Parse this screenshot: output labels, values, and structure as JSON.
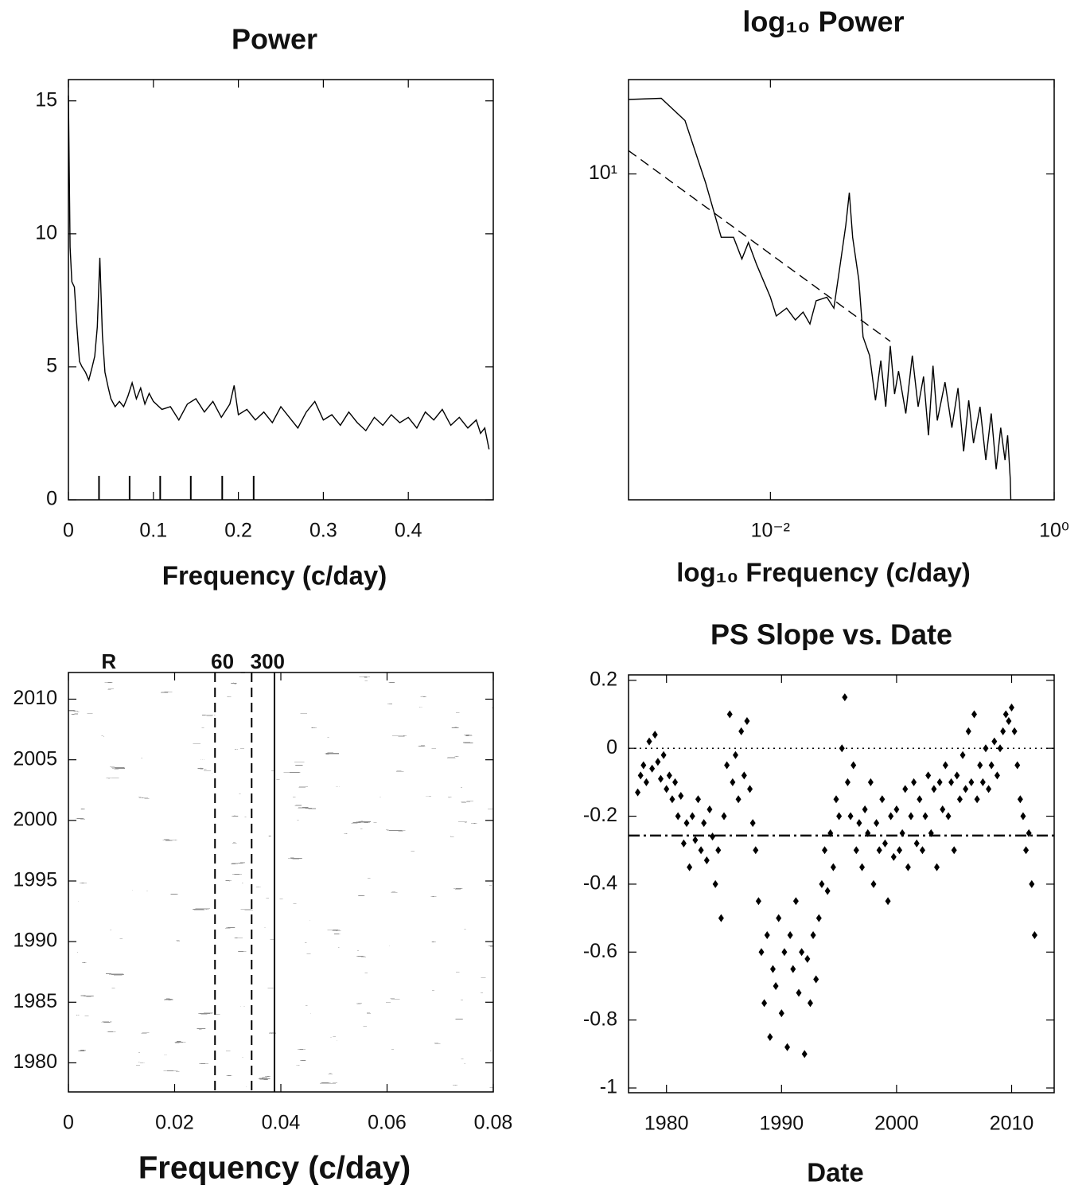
{
  "chart_data": [
    {
      "type": "line",
      "title": "Power",
      "xlabel": "Frequency (c/day)",
      "xlim": [
        0,
        0.5
      ],
      "xticks": [
        0,
        0.1,
        0.2,
        0.3,
        0.4
      ],
      "ylim": [
        0,
        15.8
      ],
      "yticks": [
        0,
        5,
        10,
        15
      ],
      "series": [
        {
          "color": "#000000",
          "style": "solid",
          "x": [
            0,
            0.002,
            0.004,
            0.007,
            0.01,
            0.013,
            0.016,
            0.02,
            0.024,
            0.028,
            0.031,
            0.034,
            0.037,
            0.04,
            0.043,
            0.047,
            0.05,
            0.055,
            0.06,
            0.065,
            0.07,
            0.075,
            0.08,
            0.085,
            0.09,
            0.095,
            0.1,
            0.11,
            0.12,
            0.13,
            0.14,
            0.15,
            0.16,
            0.17,
            0.18,
            0.19,
            0.195,
            0.2,
            0.21,
            0.22,
            0.23,
            0.24,
            0.25,
            0.26,
            0.27,
            0.28,
            0.29,
            0.3,
            0.31,
            0.32,
            0.33,
            0.34,
            0.35,
            0.36,
            0.37,
            0.38,
            0.39,
            0.4,
            0.41,
            0.42,
            0.43,
            0.44,
            0.45,
            0.46,
            0.47,
            0.48,
            0.485,
            0.49,
            0.495
          ],
          "values": [
            15.2,
            9.5,
            8.2,
            8.0,
            6.5,
            5.2,
            5.0,
            4.8,
            4.5,
            5.0,
            5.4,
            6.5,
            9.1,
            6.2,
            4.8,
            4.2,
            3.8,
            3.5,
            3.7,
            3.5,
            3.9,
            4.4,
            3.8,
            4.2,
            3.6,
            4.0,
            3.7,
            3.4,
            3.5,
            3.0,
            3.6,
            3.8,
            3.3,
            3.7,
            3.1,
            3.6,
            4.3,
            3.2,
            3.4,
            3.0,
            3.3,
            2.9,
            3.5,
            3.1,
            2.7,
            3.3,
            3.7,
            3.0,
            3.2,
            2.8,
            3.3,
            2.9,
            2.6,
            3.1,
            2.8,
            3.2,
            2.9,
            3.1,
            2.7,
            3.3,
            3.0,
            3.4,
            2.8,
            3.1,
            2.7,
            3.0,
            2.5,
            2.7,
            1.9
          ]
        }
      ],
      "markers": [
        0.036,
        0.072,
        0.108,
        0.144,
        0.181,
        0.218
      ],
      "marker_top": 0.9
    },
    {
      "type": "line",
      "title": "log₁₀ Power",
      "xlabel": "log₁₀ Frequency (c/day)",
      "log_x": true,
      "log_y": true,
      "xlim": [
        0.001,
        1
      ],
      "xticks": [
        {
          "value": 0.01,
          "label": "10⁻²"
        },
        {
          "value": 1,
          "label": "10⁰"
        }
      ],
      "ylim": [
        1.6,
        17
      ],
      "yticks": [
        {
          "value": 10,
          "label": "10¹"
        }
      ],
      "series": [
        {
          "color": "#000000",
          "style": "solid",
          "x": [
            0.001,
            0.0017,
            0.0025,
            0.0035,
            0.0045,
            0.0055,
            0.0063,
            0.007,
            0.008,
            0.01,
            0.011,
            0.013,
            0.015,
            0.017,
            0.019,
            0.021,
            0.025,
            0.028,
            0.031,
            0.034,
            0.036,
            0.038,
            0.042,
            0.045,
            0.05,
            0.055,
            0.06,
            0.065,
            0.07,
            0.075,
            0.08,
            0.09,
            0.1,
            0.11,
            0.12,
            0.13,
            0.14,
            0.15,
            0.17,
            0.19,
            0.21,
            0.23,
            0.25,
            0.27,
            0.3,
            0.33,
            0.36,
            0.39,
            0.42,
            0.45,
            0.47,
            0.49,
            0.495
          ],
          "values": [
            15.2,
            15.3,
            13.5,
            9.5,
            7.0,
            7.0,
            6.2,
            6.8,
            6.0,
            5.0,
            4.5,
            4.7,
            4.4,
            4.6,
            4.3,
            4.9,
            5.0,
            4.7,
            6.0,
            7.5,
            9.0,
            7.0,
            5.5,
            4.0,
            3.6,
            2.8,
            3.5,
            2.7,
            3.8,
            2.9,
            3.3,
            2.6,
            3.6,
            2.7,
            3.2,
            2.3,
            3.4,
            2.5,
            3.1,
            2.4,
            3.0,
            2.1,
            2.8,
            2.2,
            2.7,
            2.0,
            2.6,
            1.9,
            2.4,
            2.0,
            2.3,
            1.8,
            1.6
          ]
        },
        {
          "color": "#000000",
          "style": "dashed",
          "x": [
            0.001,
            0.07
          ],
          "values": [
            11.4,
            3.9
          ]
        }
      ]
    },
    {
      "type": "heatmap",
      "xlabel": "Frequency (c/day)",
      "xlim": [
        0,
        0.08
      ],
      "xticks": [
        0,
        0.02,
        0.04,
        0.06,
        0.08
      ],
      "ylim": [
        1977.6,
        2012.2
      ],
      "yticks": [
        1980,
        1985,
        1990,
        1995,
        2000,
        2005,
        2010
      ],
      "lines": [
        {
          "x": 0.0276,
          "style": "dashed"
        },
        {
          "x": 0.0345,
          "style": "dashed"
        },
        {
          "x": 0.0388,
          "style": "solid"
        }
      ],
      "annotations": [
        {
          "text": "R",
          "x": 0.0076
        },
        {
          "text": "60",
          "x": 0.029
        },
        {
          "text": "300",
          "x": 0.0375
        }
      ]
    },
    {
      "type": "scatter",
      "title": "PS Slope vs. Date",
      "xlabel": "Date",
      "xlim": [
        1976.7,
        2013.7
      ],
      "xticks": [
        1980,
        1990,
        2000,
        2010
      ],
      "ylim": [
        -1.014,
        0.216
      ],
      "yticks": [
        0.2,
        0,
        -0.2,
        -0.4,
        -0.6,
        -0.8,
        -1
      ],
      "hlines": [
        {
          "y": 0,
          "style": "dotted"
        },
        {
          "y": -0.257,
          "style": "dashdot"
        }
      ],
      "color": "#000000",
      "x": [
        1977.5,
        1977.75,
        1978,
        1978.25,
        1978.5,
        1978.75,
        1979,
        1979.25,
        1979.5,
        1979.75,
        1980,
        1980.25,
        1980.5,
        1980.75,
        1981,
        1981.25,
        1981.5,
        1981.75,
        1982,
        1982.25,
        1982.5,
        1982.75,
        1983,
        1983.25,
        1983.5,
        1983.75,
        1984,
        1984.25,
        1984.5,
        1984.75,
        1985,
        1985.25,
        1985.5,
        1985.75,
        1986,
        1986.25,
        1986.5,
        1986.75,
        1987,
        1987.25,
        1987.5,
        1987.75,
        1988,
        1988.25,
        1988.5,
        1988.75,
        1989,
        1989.25,
        1989.5,
        1989.75,
        1990,
        1990.25,
        1990.5,
        1990.75,
        1991,
        1991.25,
        1991.5,
        1991.75,
        1992,
        1992.25,
        1992.5,
        1992.75,
        1993,
        1993.25,
        1993.5,
        1993.75,
        1994,
        1994.25,
        1994.5,
        1994.75,
        1995,
        1995.25,
        1995.5,
        1995.75,
        1996,
        1996.25,
        1996.5,
        1996.75,
        1997,
        1997.25,
        1997.5,
        1997.75,
        1998,
        1998.25,
        1998.5,
        1998.75,
        1999,
        1999.25,
        1999.5,
        1999.75,
        2000,
        2000.25,
        2000.5,
        2000.75,
        2001,
        2001.25,
        2001.5,
        2001.75,
        2002,
        2002.25,
        2002.5,
        2002.75,
        2003,
        2003.25,
        2003.5,
        2003.75,
        2004,
        2004.25,
        2004.5,
        2004.75,
        2005,
        2005.25,
        2005.5,
        2005.75,
        2006,
        2006.25,
        2006.5,
        2006.75,
        2007,
        2007.25,
        2007.5,
        2007.75,
        2008,
        2008.25,
        2008.5,
        2008.75,
        2009,
        2009.25,
        2009.5,
        2009.75,
        2010,
        2010.25,
        2010.5,
        2010.75,
        2011,
        2011.25,
        2011.5,
        2011.75,
        2012
      ],
      "values": [
        -0.13,
        -0.08,
        -0.05,
        -0.1,
        0.02,
        -0.06,
        0.04,
        -0.04,
        -0.09,
        -0.02,
        -0.12,
        -0.08,
        -0.15,
        -0.1,
        -0.2,
        -0.14,
        -0.28,
        -0.22,
        -0.35,
        -0.2,
        -0.27,
        -0.15,
        -0.3,
        -0.22,
        -0.33,
        -0.18,
        -0.26,
        -0.4,
        -0.3,
        -0.5,
        -0.2,
        -0.05,
        0.1,
        -0.1,
        -0.02,
        -0.15,
        0.05,
        -0.08,
        0.08,
        -0.12,
        -0.22,
        -0.3,
        -0.45,
        -0.6,
        -0.75,
        -0.55,
        -0.85,
        -0.65,
        -0.7,
        -0.5,
        -0.78,
        -0.6,
        -0.88,
        -0.55,
        -0.65,
        -0.45,
        -0.72,
        -0.6,
        -0.9,
        -0.62,
        -0.75,
        -0.55,
        -0.68,
        -0.5,
        -0.4,
        -0.3,
        -0.42,
        -0.25,
        -0.35,
        -0.15,
        -0.2,
        0.0,
        0.15,
        -0.1,
        -0.2,
        -0.05,
        -0.3,
        -0.22,
        -0.35,
        -0.18,
        -0.25,
        -0.1,
        -0.4,
        -0.22,
        -0.3,
        -0.15,
        -0.28,
        -0.45,
        -0.2,
        -0.32,
        -0.18,
        -0.3,
        -0.25,
        -0.12,
        -0.35,
        -0.2,
        -0.1,
        -0.28,
        -0.15,
        -0.3,
        -0.2,
        -0.08,
        -0.25,
        -0.12,
        -0.35,
        -0.1,
        -0.18,
        -0.05,
        -0.2,
        -0.1,
        -0.3,
        -0.08,
        -0.15,
        -0.02,
        -0.12,
        0.05,
        -0.1,
        0.1,
        -0.15,
        -0.05,
        -0.1,
        0.0,
        -0.12,
        -0.05,
        0.02,
        -0.08,
        0.0,
        0.05,
        0.1,
        0.08,
        0.12,
        0.05,
        -0.05,
        -0.15,
        -0.2,
        -0.3,
        -0.25,
        -0.4,
        -0.55
      ]
    }
  ]
}
